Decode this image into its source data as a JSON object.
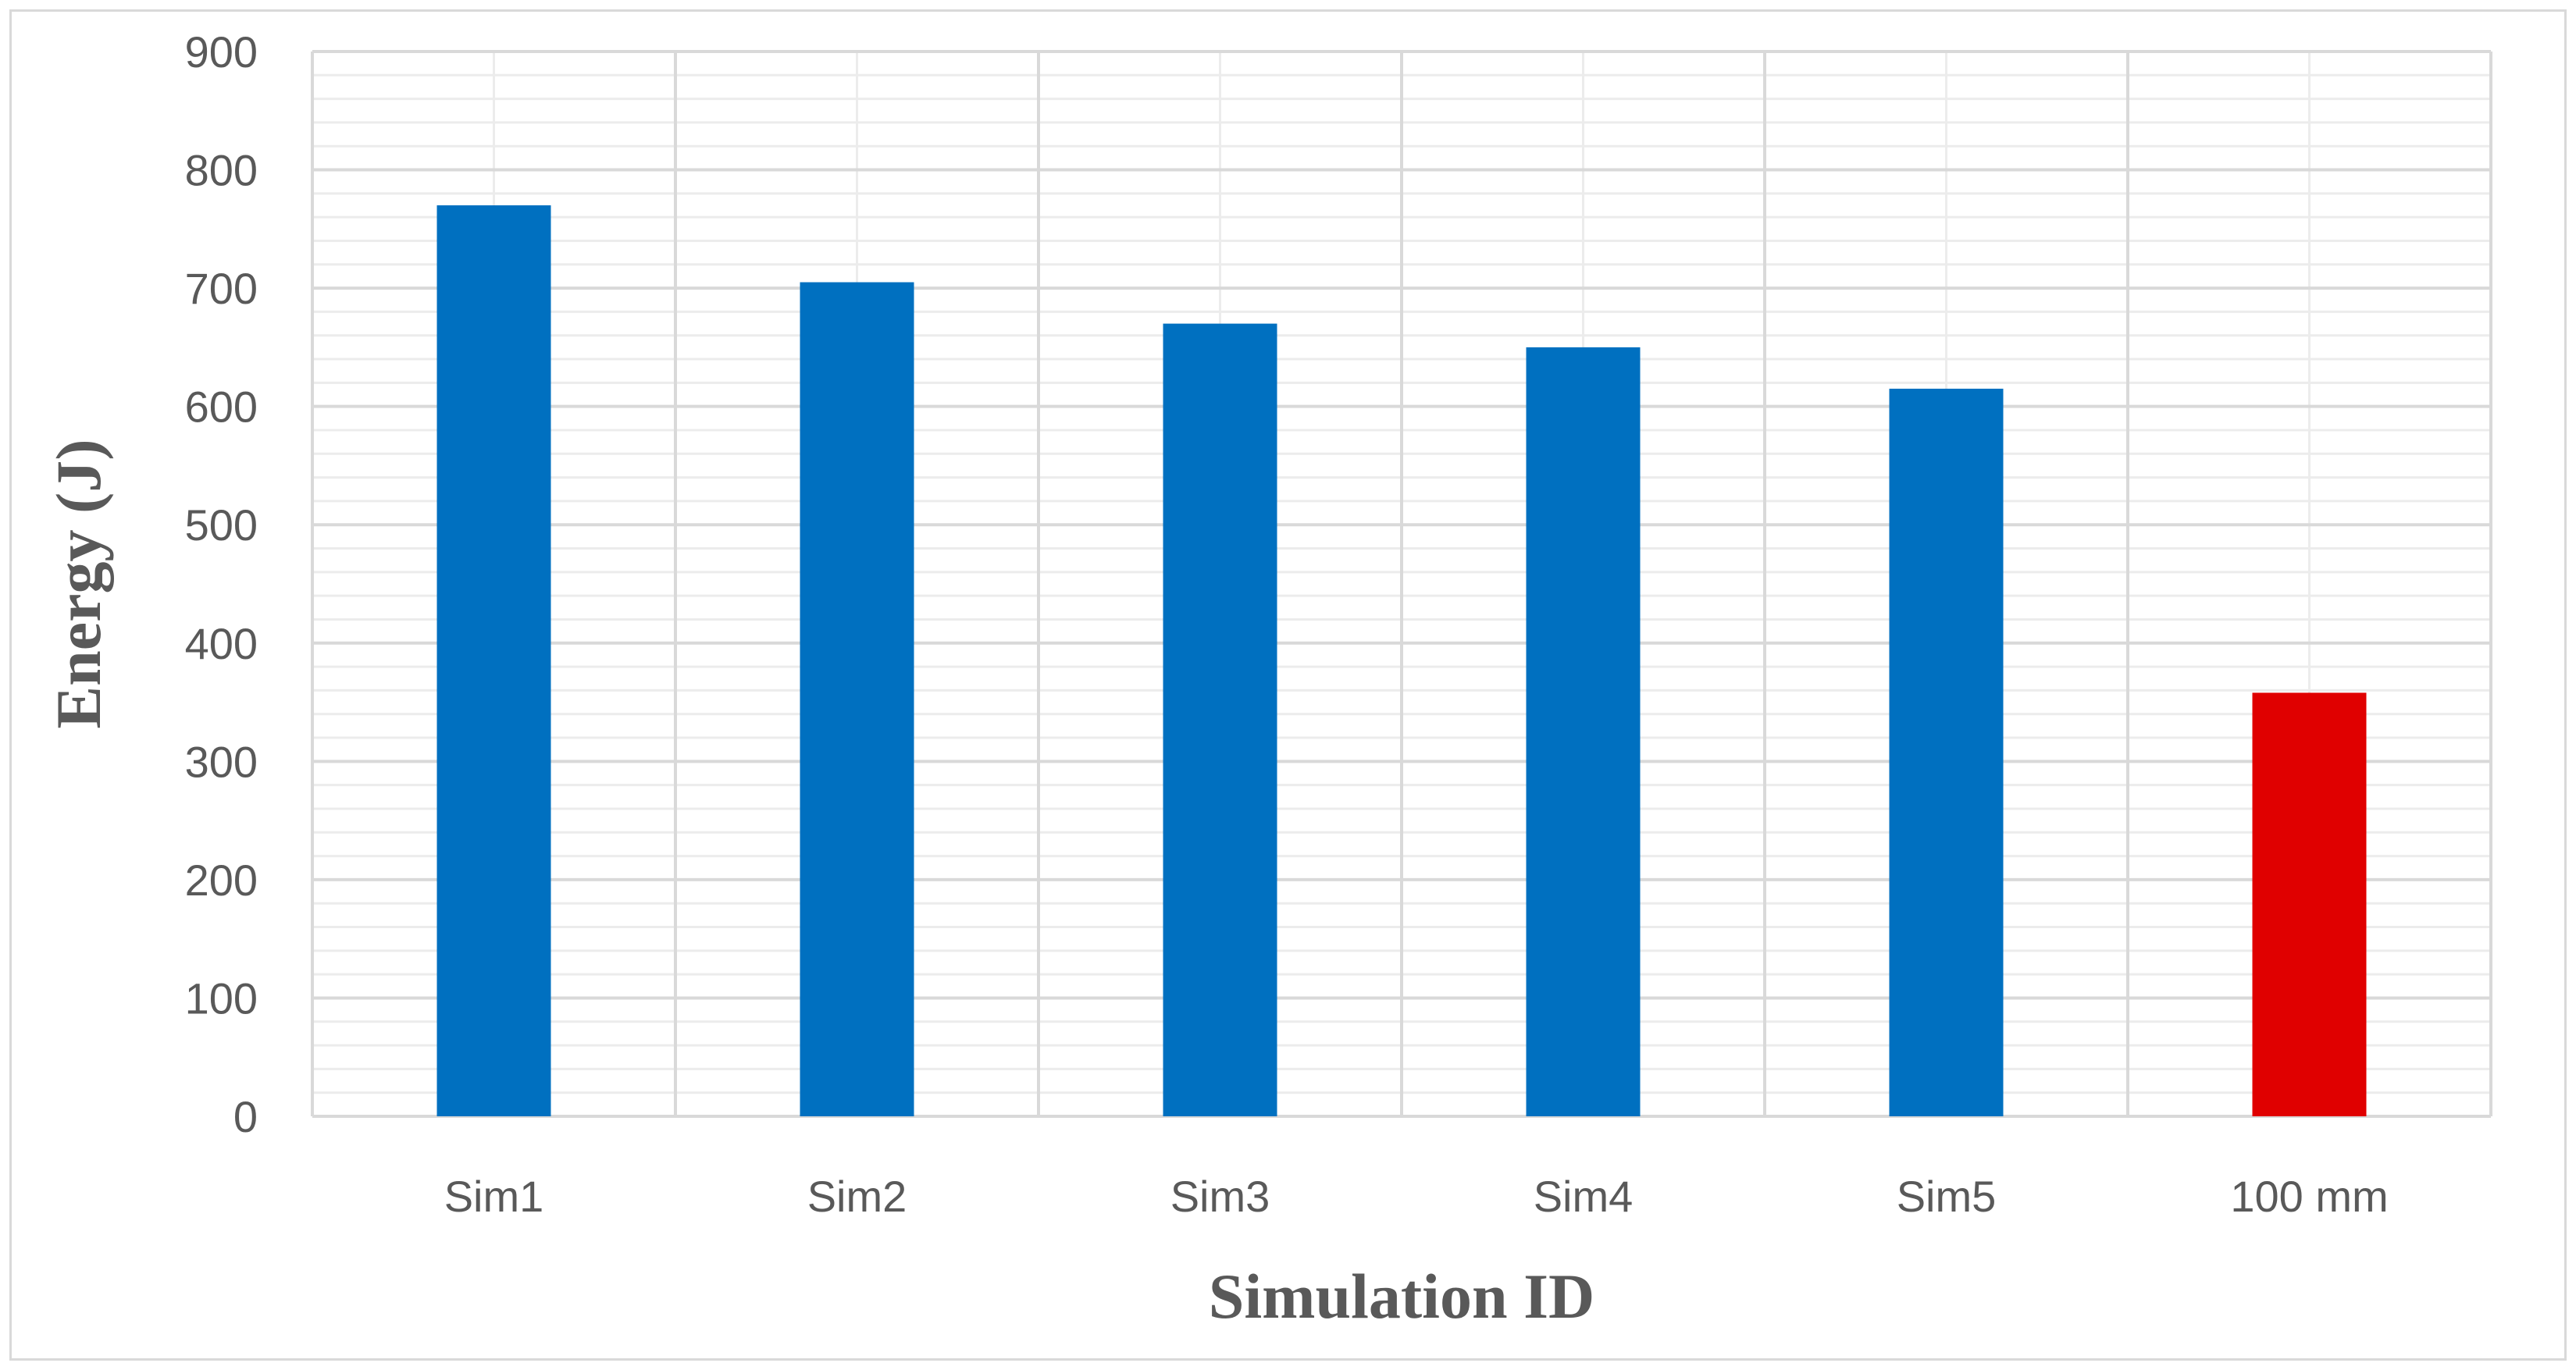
{
  "chart_data": {
    "type": "bar",
    "xlabel": "Simulation ID",
    "ylabel": "Energy (J)",
    "categories": [
      "Sim1",
      "Sim2",
      "Sim3",
      "Sim4",
      "Sim5",
      "100 mm"
    ],
    "values": [
      770,
      705,
      670,
      650,
      615,
      358
    ],
    "ylim": [
      0,
      900
    ],
    "y_ticks": [
      "0",
      "100",
      "200",
      "300",
      "400",
      "500",
      "600",
      "700",
      "800",
      "900"
    ],
    "bar_colors": [
      "#0070c0",
      "#0070c0",
      "#0070c0",
      "#0070c0",
      "#0070c0",
      "#e00000"
    ],
    "grid": true,
    "legend": "none"
  }
}
